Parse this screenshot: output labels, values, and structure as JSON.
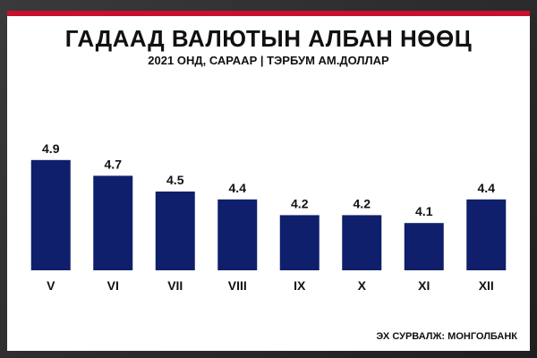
{
  "title": "ГАДААД ВАЛЮТЫН АЛБАН НӨӨЦ",
  "subtitle": "2021 ОНД, САРААР | ТЭРБУМ АМ.ДОЛЛАР",
  "source": "ЭХ СУРВАЛЖ: МОНГОЛБАНК",
  "colors": {
    "bar": "#0f1f6b",
    "accent": "#c8102e",
    "text": "#111111"
  },
  "chart_data": {
    "type": "bar",
    "title": "ГАДААД ВАЛЮТЫН АЛБАН НӨӨЦ",
    "subtitle": "2021 ОНД, САРААР | ТЭРБУМ АМ.ДОЛЛАР",
    "categories": [
      "V",
      "VI",
      "VII",
      "VIII",
      "IX",
      "X",
      "XI",
      "XII"
    ],
    "values": [
      4.9,
      4.7,
      4.5,
      4.4,
      4.2,
      4.2,
      4.1,
      4.4
    ],
    "value_labels": [
      "4.9",
      "4.7",
      "4.5",
      "4.4",
      "4.2",
      "4.2",
      "4.1",
      "4.4"
    ],
    "xlabel": "",
    "ylabel": "",
    "grid": false,
    "legend": "none"
  }
}
